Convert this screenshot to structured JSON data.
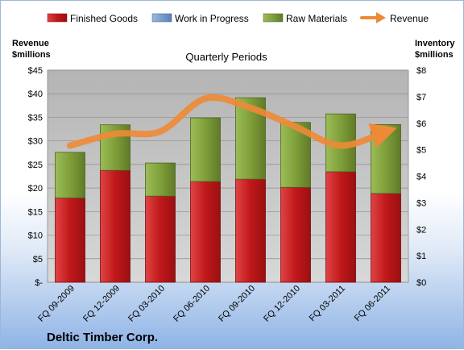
{
  "company": "Deltic Timber Corp.",
  "colors": {
    "finished_goods": "#c0181a",
    "work_in_progress": "#6f93c8",
    "raw_materials": "#7f9f3a",
    "revenue": "#ee8a35",
    "plot_bg": "#c0c0c0"
  },
  "chart_data": {
    "type": "bar",
    "stacked": true,
    "title": "",
    "subtitle": "Quarterly Periods",
    "y_left_label": [
      "Revenue",
      "$millions"
    ],
    "y_right_label": [
      "Inventory",
      "$millions"
    ],
    "y_left_ticks": [
      "$-",
      "$5",
      "$10",
      "$15",
      "$20",
      "$25",
      "$30",
      "$35",
      "$40",
      "$45"
    ],
    "y_right_ticks": [
      "$0",
      "$1",
      "$2",
      "$3",
      "$4",
      "$5",
      "$6",
      "$7",
      "$8"
    ],
    "ylim_left": [
      0,
      45
    ],
    "ylim_right": [
      0,
      8
    ],
    "grid": true,
    "legend_position": "top",
    "categories": [
      "FQ 09-2009",
      "FQ 12-2009",
      "FQ 03-2010",
      "FQ 06-2010",
      "FQ 09-2010",
      "FQ 12-2010",
      "FQ 03-2011",
      "FQ 06-2011"
    ],
    "series": [
      {
        "name": "Finished Goods",
        "axis": "right",
        "type": "bar",
        "values": [
          3.18,
          4.22,
          3.25,
          3.8,
          3.89,
          3.58,
          4.17,
          3.35
        ]
      },
      {
        "name": "Work in Progress",
        "axis": "right",
        "type": "bar",
        "values": [
          0,
          0,
          0,
          0,
          0,
          0,
          0,
          0
        ]
      },
      {
        "name": "Raw Materials",
        "axis": "right",
        "type": "bar",
        "values": [
          1.72,
          1.72,
          1.25,
          2.4,
          3.07,
          2.45,
          2.18,
          2.6
        ]
      },
      {
        "name": "Revenue",
        "axis": "left",
        "type": "line",
        "values": [
          29,
          31.5,
          32,
          39,
          37,
          33,
          29,
          32
        ]
      }
    ]
  }
}
